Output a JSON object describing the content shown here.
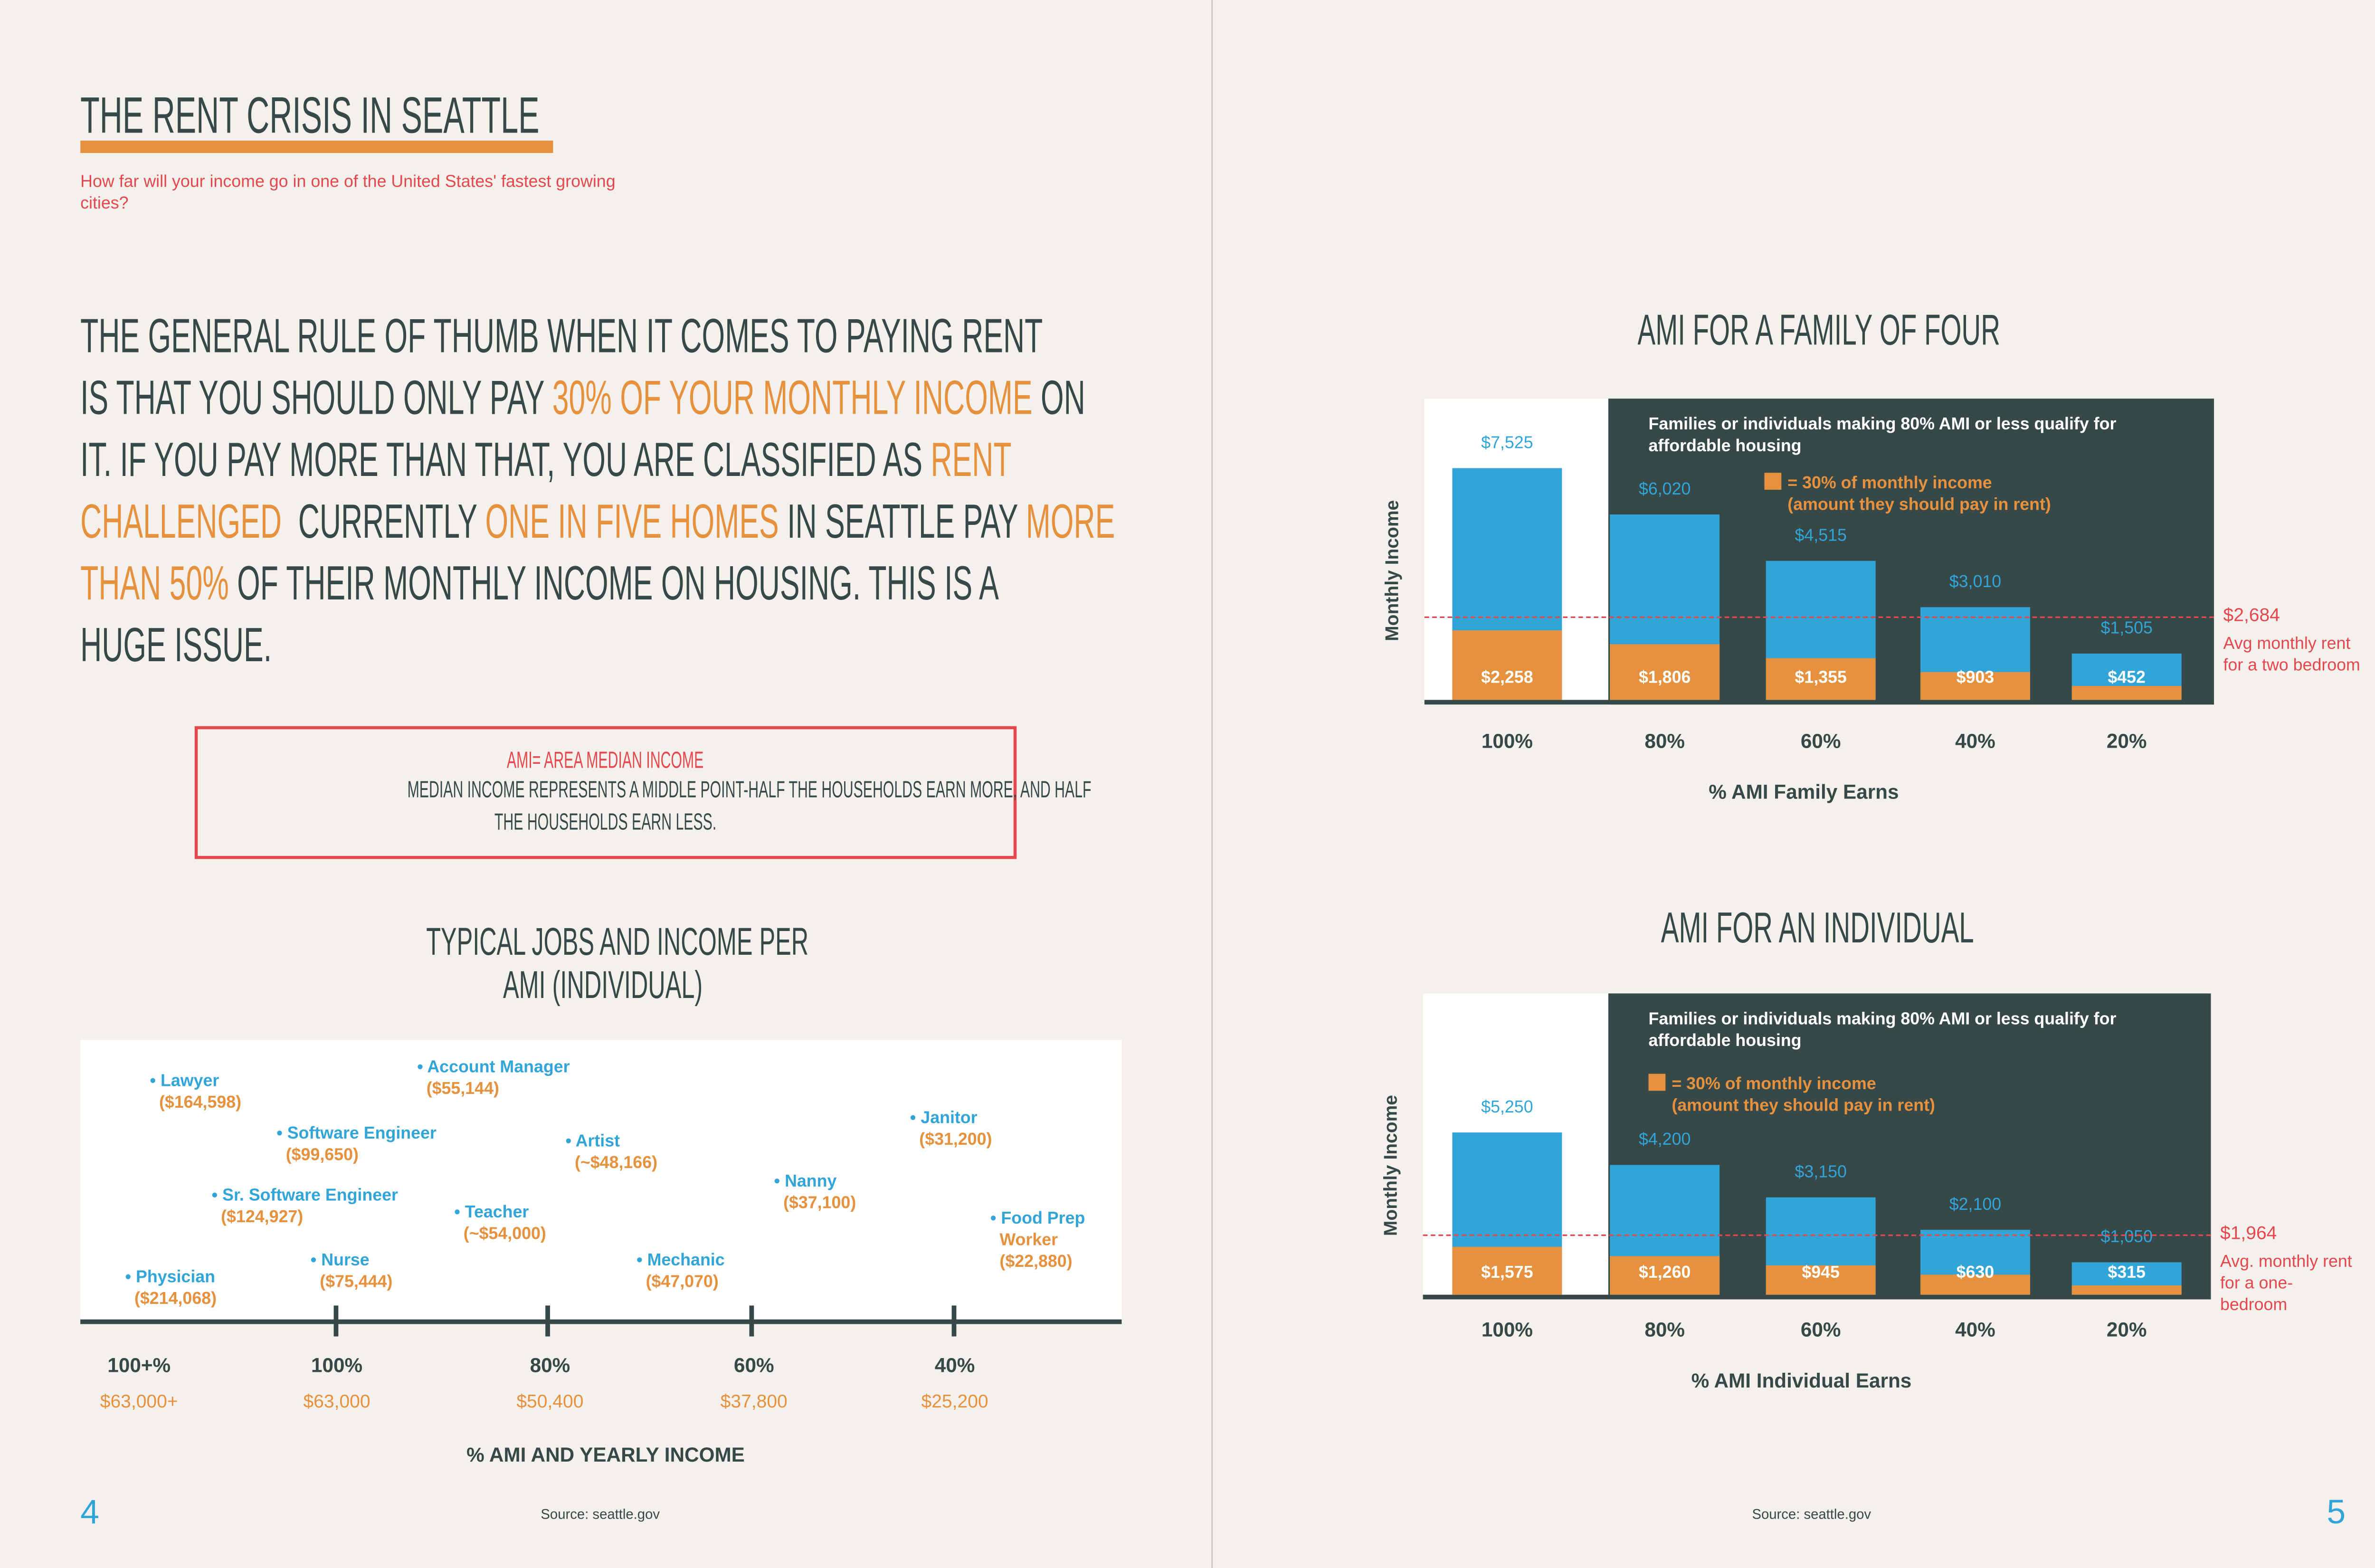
{
  "colors": {
    "dark": "#364848",
    "orange": "#E6913D",
    "blue": "#31A5D8",
    "red": "#E5474F",
    "background": "#F4F0EC"
  },
  "left_page": {
    "title": "THE RENT CRISIS IN SEATTLE",
    "subtitle": "How far will your income go in one of the United States' fastest growing cities?",
    "paragraph_lines": [
      [
        {
          "t": "THE GENERAL RULE OF THUMB WHEN IT COMES TO PAYING RENT",
          "h": false
        }
      ],
      [
        {
          "t": "IS THAT YOU SHOULD ONLY PAY ",
          "h": false
        },
        {
          "t": "30% OF YOUR MONTHLY INCOME",
          "h": true
        },
        {
          "t": " ON",
          "h": false
        }
      ],
      [
        {
          "t": "IT. IF YOU PAY MORE THAN THAT, YOU ARE CLASSIFIED AS ",
          "h": false
        },
        {
          "t": "RENT",
          "h": true
        }
      ],
      [
        {
          "t": "CHALLENGED",
          "h": true
        },
        {
          "t": "  CURRENTLY ",
          "h": false
        },
        {
          "t": "ONE IN FIVE HOMES",
          "h": true
        },
        {
          "t": " IN SEATTLE PAY ",
          "h": false
        },
        {
          "t": "MORE",
          "h": true
        }
      ],
      [
        {
          "t": "THAN 50%",
          "h": true
        },
        {
          "t": " OF THEIR MONTHLY INCOME ON HOUSING. THIS IS A",
          "h": false
        }
      ],
      [
        {
          "t": "HUGE ISSUE.",
          "h": false
        }
      ]
    ],
    "ami_box": {
      "heading": "AMI= AREA MEDIAN INCOME",
      "line1": "MEDIAN INCOME REPRESENTS A MIDDLE POINT-HALF THE HOUSEHOLDS EARN MORE, AND HALF",
      "line2": "THE HOUSEHOLDS EARN LESS."
    },
    "jobs_title_line1": "TYPICAL JOBS AND INCOME PER",
    "jobs_title_line2": "AMI (INDIVIDUAL)",
    "jobs": [
      {
        "name": "Lawyer",
        "income": "($164,598)"
      },
      {
        "name": "Account Manager",
        "income": "($55,144)"
      },
      {
        "name": "Software Engineer",
        "income": "($99,650)"
      },
      {
        "name": "Artist",
        "income": "(~$48,166)"
      },
      {
        "name": "Janitor",
        "income": "($31,200)"
      },
      {
        "name": "Sr. Software Engineer",
        "income": "($124,927)"
      },
      {
        "name": "Nanny",
        "income": "($37,100)"
      },
      {
        "name": "Teacher",
        "income": "(~$54,000)"
      },
      {
        "name": "Food Prep",
        "income": "Worker"
      },
      {
        "name": "Nurse",
        "income": "($75,444)"
      },
      {
        "name": "Mechanic",
        "income": "($47,070)"
      },
      {
        "name": "Physician",
        "income": "($214,068)"
      }
    ],
    "food_prep_income": "($22,880)",
    "ami_levels": [
      {
        "pct": "100+%",
        "income": "$63,000+"
      },
      {
        "pct": "100%",
        "income": "$63,000"
      },
      {
        "pct": "80%",
        "income": "$50,400"
      },
      {
        "pct": "60%",
        "income": "$37,800"
      },
      {
        "pct": "40%",
        "income": "$25,200"
      }
    ],
    "xlabel": "% AMI AND YEARLY INCOME",
    "source": "Source: seattle.gov",
    "page_number": "4"
  },
  "right_page": {
    "source": "Source: seattle.gov",
    "page_number": "5"
  },
  "chart_data": [
    {
      "type": "bar",
      "title": "AMI FOR A FAMILY OF FOUR",
      "xlabel": "% AMI Family Earns",
      "ylabel": "Monthly Income",
      "categories": [
        "100%",
        "80%",
        "60%",
        "40%",
        "20%"
      ],
      "series": [
        {
          "name": "Monthly income",
          "values": [
            7525,
            6020,
            4515,
            3010,
            1505
          ],
          "labels": [
            "$7,525",
            "$6,020",
            "$4,515",
            "$3,010",
            "$1,505"
          ]
        },
        {
          "name": "= 30% of monthly income",
          "values": [
            2258,
            1806,
            1355,
            903,
            452
          ],
          "labels": [
            "$2,258",
            "$1,806",
            "$1,355",
            "$903",
            "$452"
          ]
        }
      ],
      "legend_line1": "= 30% of monthly income",
      "legend_line2": "(amount they should pay in rent)",
      "note": "Families or individuals making 80% AMI or less qualify for affordable housing",
      "reference_line": {
        "value": 2684,
        "label": "$2,684",
        "note": "Avg monthly rent for a two bedroom"
      },
      "ylim": [
        0,
        10000
      ]
    },
    {
      "type": "bar",
      "title": "AMI FOR AN INDIVIDUAL",
      "xlabel": "% AMI Individual Earns",
      "ylabel": "Monthly Income",
      "categories": [
        "100%",
        "80%",
        "60%",
        "40%",
        "20%"
      ],
      "series": [
        {
          "name": "Monthly income",
          "values": [
            5250,
            4200,
            3150,
            2100,
            1050
          ],
          "labels": [
            "$5,250",
            "$4,200",
            "$3,150",
            "$2,100",
            "$1,050"
          ]
        },
        {
          "name": "= 30% of monthly income",
          "values": [
            1575,
            1260,
            945,
            630,
            315
          ],
          "labels": [
            "$1,575",
            "$1,260",
            "$945",
            "$630",
            "$315"
          ]
        }
      ],
      "legend_line1": "= 30% of monthly income",
      "legend_line2": "(amount they should pay in rent)",
      "note": "Families or individuals making 80% AMI or less qualify for affordable housing",
      "reference_line": {
        "value": 1964,
        "label": "$1,964",
        "note": "Avg. monthly rent for a one-bedroom"
      },
      "ylim": [
        0,
        10000
      ]
    }
  ]
}
